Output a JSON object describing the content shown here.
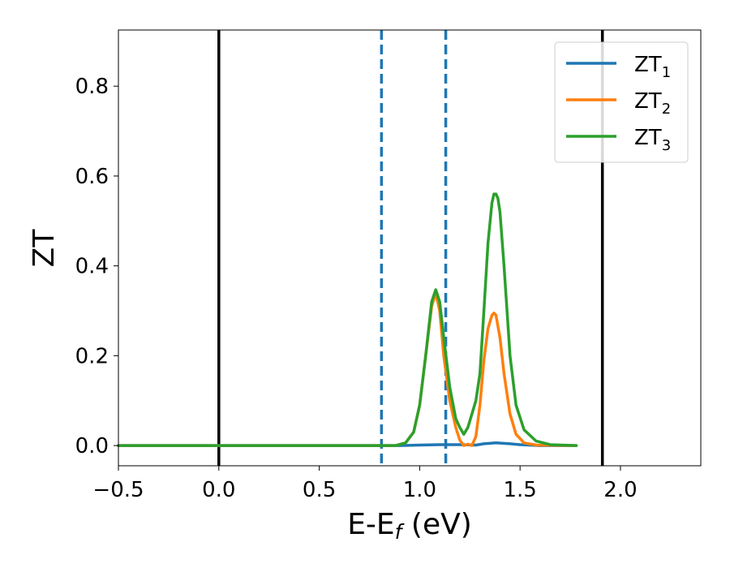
{
  "chart_data": {
    "type": "line",
    "xlabel": "E-E_f (eV)",
    "ylabel": "ZT",
    "xlim": [
      -0.5,
      2.4
    ],
    "ylim": [
      -0.045,
      0.925
    ],
    "xticks": [
      -0.5,
      0.0,
      0.5,
      1.0,
      1.5,
      2.0
    ],
    "xtick_labels": [
      "−0.5",
      "0.0",
      "0.5",
      "1.0",
      "1.5",
      "2.0"
    ],
    "yticks": [
      0.0,
      0.2,
      0.4,
      0.6,
      0.8
    ],
    "ytick_labels": [
      "0.0",
      "0.2",
      "0.4",
      "0.6",
      "0.8"
    ],
    "grid": false,
    "legend_position": "top-right",
    "vertical_lines": [
      {
        "x": 0.0,
        "style": "solid",
        "color": "#000000"
      },
      {
        "x": 1.91,
        "style": "solid",
        "color": "#000000"
      },
      {
        "x": 0.81,
        "style": "dashed",
        "color": "#1f77b4"
      },
      {
        "x": 1.13,
        "style": "dashed",
        "color": "#1f77b4"
      }
    ],
    "series": [
      {
        "name": "ZT_1",
        "label_main": "ZT",
        "label_sub": "1",
        "color": "#1f77b4",
        "x": [
          -0.5,
          0.5,
          0.9,
          1.0,
          1.1,
          1.2,
          1.28,
          1.32,
          1.38,
          1.45,
          1.5,
          1.6,
          1.78
        ],
        "y": [
          0.0,
          0.0,
          0.0,
          0.001,
          0.002,
          0.002,
          0.001,
          0.004,
          0.006,
          0.004,
          0.002,
          0.0,
          0.0
        ]
      },
      {
        "name": "ZT_2",
        "label_main": "ZT",
        "label_sub": "2",
        "color": "#ff7f0e",
        "x": [
          -0.5,
          0.5,
          0.88,
          0.93,
          0.97,
          1.0,
          1.03,
          1.06,
          1.08,
          1.1,
          1.12,
          1.15,
          1.18,
          1.2,
          1.22,
          1.24,
          1.26,
          1.28,
          1.3,
          1.32,
          1.34,
          1.36,
          1.37,
          1.38,
          1.4,
          1.42,
          1.45,
          1.48,
          1.52,
          1.58,
          1.78
        ],
        "y": [
          0.0,
          0.0,
          0.0,
          0.006,
          0.03,
          0.09,
          0.2,
          0.31,
          0.34,
          0.3,
          0.2,
          0.1,
          0.04,
          0.012,
          0.0,
          0.003,
          0.0,
          0.02,
          0.09,
          0.19,
          0.26,
          0.29,
          0.295,
          0.29,
          0.24,
          0.16,
          0.07,
          0.025,
          0.006,
          0.001,
          0.0
        ]
      },
      {
        "name": "ZT_3",
        "label_main": "ZT",
        "label_sub": "3",
        "color": "#2ca02c",
        "x": [
          -0.5,
          0.5,
          0.88,
          0.93,
          0.97,
          1.0,
          1.03,
          1.06,
          1.08,
          1.1,
          1.12,
          1.15,
          1.18,
          1.2,
          1.22,
          1.24,
          1.26,
          1.28,
          1.3,
          1.32,
          1.34,
          1.36,
          1.37,
          1.38,
          1.39,
          1.4,
          1.42,
          1.45,
          1.48,
          1.52,
          1.58,
          1.65,
          1.78
        ],
        "y": [
          0.0,
          0.0,
          0.0,
          0.006,
          0.03,
          0.09,
          0.2,
          0.32,
          0.347,
          0.32,
          0.24,
          0.13,
          0.06,
          0.04,
          0.025,
          0.04,
          0.07,
          0.1,
          0.16,
          0.3,
          0.45,
          0.54,
          0.56,
          0.56,
          0.55,
          0.52,
          0.4,
          0.2,
          0.09,
          0.035,
          0.01,
          0.002,
          0.0
        ]
      }
    ]
  }
}
